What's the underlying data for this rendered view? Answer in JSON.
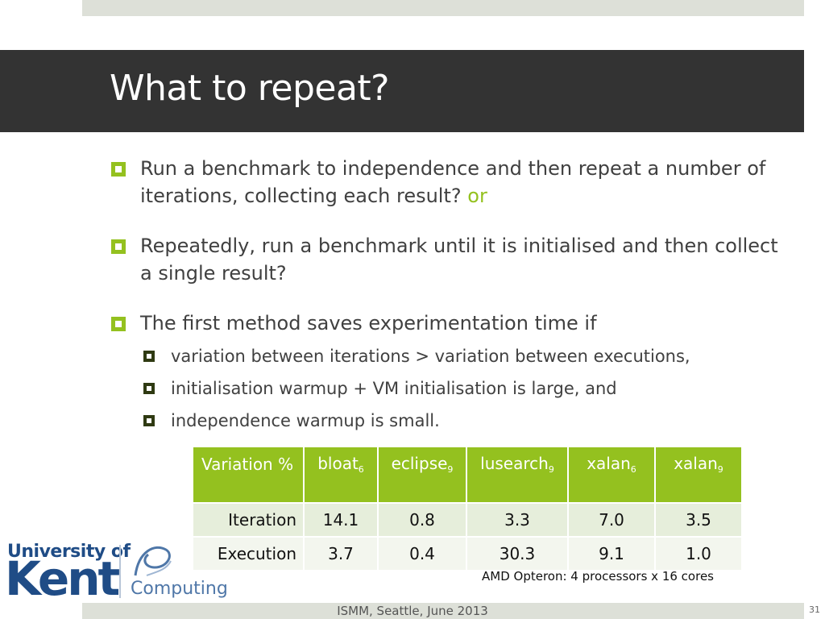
{
  "slide": {
    "title": "What to repeat?",
    "bullets": [
      {
        "text": "Run a benchmark to independence and then repeat a number of iterations, collecting each result?",
        "accent": "or"
      },
      {
        "text": "Repeatedly, run a benchmark until it is initialised and then collect a single result?"
      },
      {
        "text": "The first method saves experimentation time if"
      }
    ],
    "sub_bullets": [
      "variation between iterations > variation between executions,",
      "initialisation warmup + VM initialisation is large, and",
      "independence warmup is small."
    ]
  },
  "table": {
    "header_label": "Variation %",
    "columns": [
      {
        "name": "bloat",
        "sub": "6"
      },
      {
        "name": "eclipse",
        "sub": "9"
      },
      {
        "name": "lusearch",
        "sub": "9"
      },
      {
        "name": "xalan",
        "sub": "6"
      },
      {
        "name": "xalan",
        "sub": "9"
      }
    ],
    "rows": [
      {
        "label": "Iteration",
        "values": [
          "14.1",
          "0.8",
          "3.3",
          "7.0",
          "3.5"
        ]
      },
      {
        "label": "Execution",
        "values": [
          "3.7",
          "0.4",
          "30.3",
          "9.1",
          "1.0"
        ]
      }
    ]
  },
  "note": "AMD Opteron: 4 processors x 16 cores",
  "logo": {
    "line1": "University of",
    "line2": "Kent",
    "dept": "Computing"
  },
  "footer": {
    "text": "ISMM, Seattle, June 2013",
    "page": "31"
  },
  "colors": {
    "accent": "#94c11f",
    "title_bar": "#333333",
    "band": "#dde0d8",
    "logo_blue": "#1f4c86"
  }
}
